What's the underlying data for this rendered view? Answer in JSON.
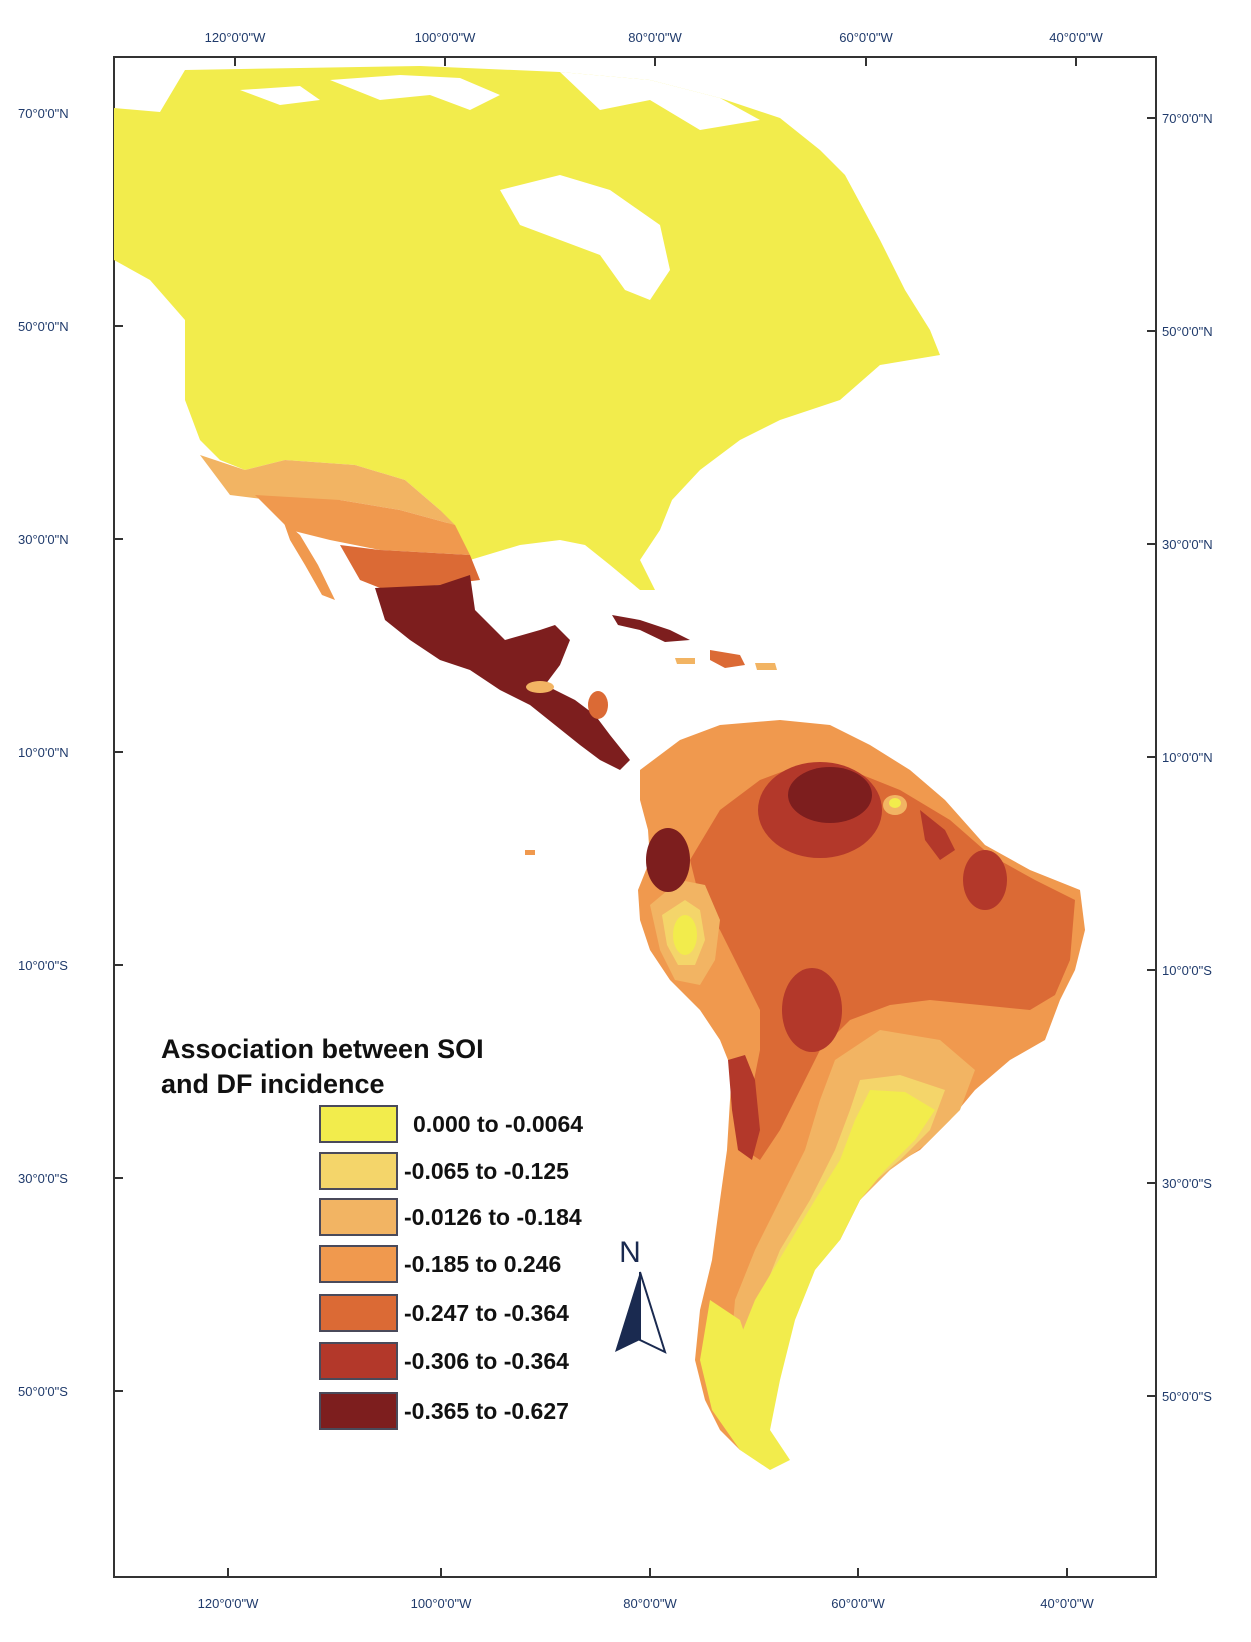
{
  "map": {
    "top_ticks": [
      "120°0'0\"W",
      "100°0'0\"W",
      "80°0'0\"W",
      "60°0'0\"W",
      "40°0'0\"W"
    ],
    "bottom_ticks": [
      "120°0'0\"W",
      "100°0'0\"W",
      "80°0'0\"W",
      "60°0'0\"W",
      "40°0'0\"W"
    ],
    "lat_ticks": [
      "70°0'0\"N",
      "50°0'0\"N",
      "30°0'0\"N",
      "10°0'0\"N",
      "10°0'0\"S",
      "30°0'0\"S",
      "50°0'0\"S"
    ],
    "north_label": "N"
  },
  "legend": {
    "title_line1": "Association between SOI",
    "title_line2": "and DF incidence",
    "classes": [
      {
        "label": "0.000 to -0.0064",
        "color": "#f2ec4c"
      },
      {
        "label": "-0.065 to -0.125",
        "color": "#f4d56a"
      },
      {
        "label": "-0.0126 to -0.184",
        "color": "#f2b463"
      },
      {
        "label": "-0.185 to 0.246",
        "color": "#f0994e"
      },
      {
        "label": "-0.247 to -0.364",
        "color": "#db6a35"
      },
      {
        "label": "-0.306 to -0.364",
        "color": "#b3382a"
      },
      {
        "label": "-0.365 to -0.627",
        "color": "#7d1e1e"
      }
    ]
  }
}
